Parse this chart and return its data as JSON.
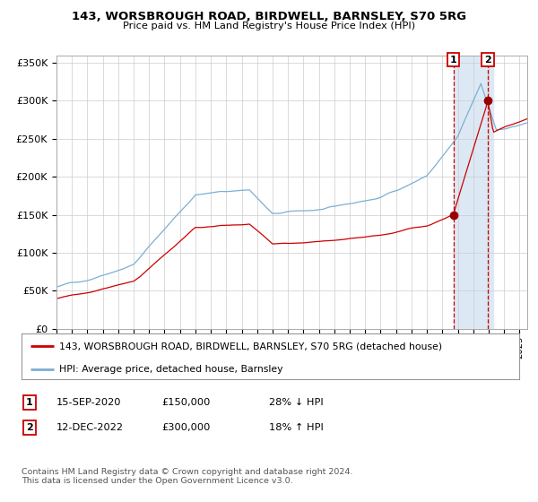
{
  "title": "143, WORSBROUGH ROAD, BIRDWELL, BARNSLEY, S70 5RG",
  "subtitle": "Price paid vs. HM Land Registry's House Price Index (HPI)",
  "legend_line1": "143, WORSBROUGH ROAD, BIRDWELL, BARNSLEY, S70 5RG (detached house)",
  "legend_line2": "HPI: Average price, detached house, Barnsley",
  "sale1_label": "1",
  "sale1_date": "15-SEP-2020",
  "sale1_price": "£150,000",
  "sale1_hpi": "28% ↓ HPI",
  "sale2_label": "2",
  "sale2_date": "12-DEC-2022",
  "sale2_price": "£300,000",
  "sale2_hpi": "18% ↑ HPI",
  "footer": "Contains HM Land Registry data © Crown copyright and database right 2024.\nThis data is licensed under the Open Government Licence v3.0.",
  "sale1_x": 2020.71,
  "sale1_y": 150000,
  "sale2_x": 2022.95,
  "sale2_y": 300000,
  "hpi_line_color": "#7bafd4",
  "price_line_color": "#cc0000",
  "sale_marker_color": "#990000",
  "shade_color": "#dce9f5",
  "vline_color": "#cc0000",
  "grid_color": "#cccccc",
  "ylim": [
    0,
    360000
  ],
  "xlim_start": 1995,
  "xlim_end": 2025.5,
  "background_color": "#ffffff"
}
